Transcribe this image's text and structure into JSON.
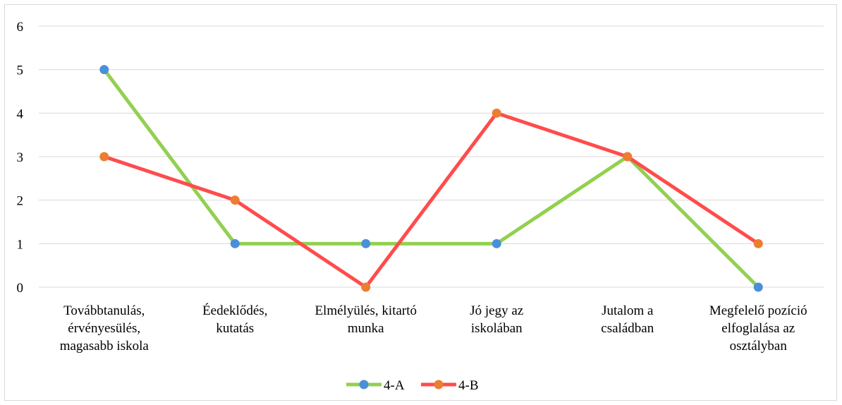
{
  "chart_data": {
    "type": "line",
    "title": "",
    "xlabel": "",
    "ylabel": "",
    "ylim": [
      0,
      6
    ],
    "yticks": [
      "0",
      "1",
      "2",
      "3",
      "4",
      "5",
      "6"
    ],
    "grid": true,
    "legend_position": "bottom",
    "categories": [
      [
        "Továbbtanulás,",
        "érvényesülés,",
        "magasabb iskola"
      ],
      [
        "Éedeklődés,",
        "kutatás"
      ],
      [
        "Elmélyülés, kitartó",
        "munka"
      ],
      [
        "Jó jegy az",
        "iskolában"
      ],
      [
        "Jutalom a",
        "családban"
      ],
      [
        "Megfelelő pozíció",
        "elfoglalása az",
        "osztályban"
      ]
    ],
    "series": [
      {
        "name": "4-A",
        "line_color": "#92d050",
        "marker_color": "#4a90d9",
        "values": [
          5,
          1,
          1,
          1,
          3,
          0
        ]
      },
      {
        "name": "4-B",
        "line_color": "#ff4c4c",
        "marker_color": "#ed7d31",
        "values": [
          3,
          2,
          0,
          4,
          3,
          1
        ]
      }
    ]
  }
}
